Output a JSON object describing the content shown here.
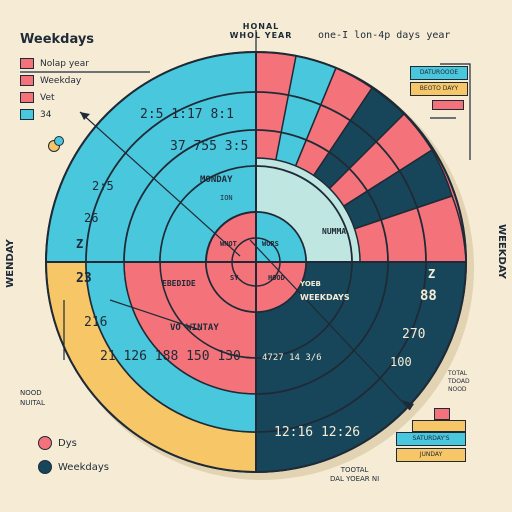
{
  "header": {
    "left_title": "Weekdays",
    "center_title_line1": "HONAL",
    "center_title_line2": "WHOL YEAR",
    "right_title": "one-I lon-4p days year"
  },
  "legend_top": [
    {
      "label": "Nolap year",
      "color": "#f4737a"
    },
    {
      "label": "Weekday",
      "color": "#f4737a"
    },
    {
      "label": "Vet",
      "color": "#f4737a"
    },
    {
      "label": "34",
      "color": "#49c7dd"
    }
  ],
  "legend_bottom": [
    {
      "label": "Dys",
      "color": "#f4737a"
    },
    {
      "label": "Weekdays",
      "color": "#17465a"
    }
  ],
  "left_side_label": "WENDAY",
  "right_side_label": "WEEKDAY",
  "left_notes": [
    "NOOD",
    "NUITAL"
  ],
  "bottom_right_notes": [
    "TOOTAL",
    "DAL YOEAR NI"
  ],
  "right_notes": [
    "TOTAL",
    "TDOAD",
    "NOOD"
  ],
  "top_right_panel": [
    {
      "label": "DATUROOOE",
      "color": "#49c7dd"
    },
    {
      "label": "BEOTO DAYY",
      "color": "#f6c667"
    }
  ],
  "bottom_right_panel": [
    {
      "label": "SATURDAY'S",
      "color": "#f4737a"
    },
    {
      "label": "JUNDAY",
      "color": "#f6c667"
    }
  ],
  "ring_labels": {
    "top_left_outer": "2:5  1:17  8:1",
    "top_left_mid": "37  755  3:5",
    "top_left_inner": "MONDAY",
    "top_left_inner2": "ION",
    "left_outer": "2:5",
    "left_mid": "26",
    "left_z": "Z",
    "center_tl": "WNOT",
    "center_tr": "WORS",
    "center_bl": "SY",
    "center_br": "HOOD",
    "mid_right": "NUMMA",
    "bottom_left_outer": "21  126  188  150  130",
    "bottom_left_mid": "216",
    "bottom_left_23": "23",
    "bottom_left_inner": "VO  WINTAY",
    "bottom_left_inner2": "EBEDIDE",
    "bottom_right_outer": "12:16  12:26",
    "bottom_right_mid": "4727  14 3/6",
    "bottom_right_inner": "WEEKDAYS",
    "bottom_right_inner2": "YOEB",
    "bottom_right_88": "88",
    "bottom_right_270": "270",
    "bottom_right_100": "100",
    "right_z": "Z"
  },
  "colors": {
    "background": "#f6ecd6",
    "cyan": "#49c7dd",
    "coral": "#f4737a",
    "yellow": "#f6c667",
    "navy": "#17465a",
    "outline": "#1f2a36"
  }
}
